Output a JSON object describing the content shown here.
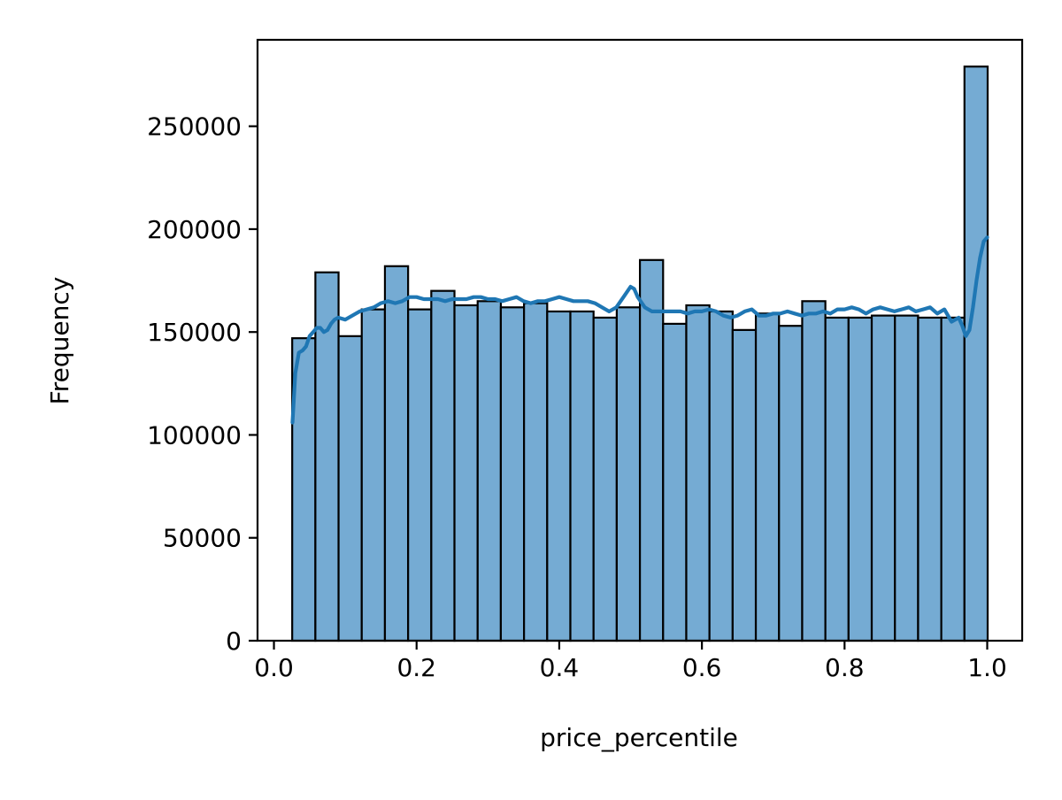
{
  "chart_data": {
    "type": "bar",
    "title": "",
    "xlabel": "price_percentile",
    "ylabel": "Frequency",
    "xlim": [
      -0.023,
      1.049
    ],
    "ylim": [
      0,
      292000
    ],
    "grid": false,
    "x_ticks": [
      0.0,
      0.2,
      0.4,
      0.6,
      0.8,
      1.0
    ],
    "x_tick_labels": [
      "0.0",
      "0.2",
      "0.4",
      "0.6",
      "0.8",
      "1.0"
    ],
    "y_ticks": [
      0,
      50000,
      100000,
      150000,
      200000,
      250000
    ],
    "y_tick_labels": [
      "0",
      "50000",
      "100000",
      "150000",
      "200000",
      "250000"
    ],
    "bin_edges": [
      0.0256,
      0.0581,
      0.0906,
      0.1231,
      0.1556,
      0.1881,
      0.2206,
      0.2531,
      0.2856,
      0.3181,
      0.3506,
      0.3831,
      0.4156,
      0.4481,
      0.4806,
      0.5131,
      0.5456,
      0.5781,
      0.6106,
      0.6431,
      0.6756,
      0.7081,
      0.7406,
      0.7731,
      0.8056,
      0.8381,
      0.8706,
      0.9031,
      0.9356,
      0.9681,
      1.0006
    ],
    "values": [
      147000,
      179000,
      148000,
      161000,
      182000,
      161000,
      170000,
      163000,
      165000,
      162000,
      164000,
      160000,
      160000,
      157000,
      162000,
      185000,
      154000,
      163000,
      160000,
      151000,
      159000,
      153000,
      165000,
      157000,
      157000,
      158000,
      158000,
      157000,
      157000,
      279000
    ],
    "bar_color": "#75abd3",
    "edge_color": "#000000",
    "kde": {
      "color": "#1f77b4",
      "x": [
        0.026,
        0.03,
        0.035,
        0.04,
        0.045,
        0.05,
        0.055,
        0.06,
        0.065,
        0.07,
        0.075,
        0.08,
        0.085,
        0.09,
        0.1,
        0.11,
        0.12,
        0.13,
        0.14,
        0.15,
        0.16,
        0.17,
        0.18,
        0.19,
        0.2,
        0.21,
        0.22,
        0.23,
        0.24,
        0.25,
        0.26,
        0.27,
        0.28,
        0.29,
        0.3,
        0.31,
        0.32,
        0.33,
        0.34,
        0.35,
        0.36,
        0.37,
        0.38,
        0.39,
        0.4,
        0.41,
        0.42,
        0.43,
        0.44,
        0.45,
        0.46,
        0.47,
        0.48,
        0.49,
        0.5,
        0.505,
        0.51,
        0.52,
        0.53,
        0.54,
        0.55,
        0.56,
        0.57,
        0.58,
        0.59,
        0.6,
        0.61,
        0.62,
        0.63,
        0.64,
        0.65,
        0.66,
        0.67,
        0.68,
        0.69,
        0.7,
        0.71,
        0.72,
        0.73,
        0.74,
        0.75,
        0.76,
        0.77,
        0.78,
        0.79,
        0.8,
        0.81,
        0.82,
        0.83,
        0.84,
        0.85,
        0.86,
        0.87,
        0.88,
        0.89,
        0.9,
        0.91,
        0.92,
        0.93,
        0.94,
        0.95,
        0.96,
        0.965,
        0.97,
        0.975,
        0.98,
        0.985,
        0.99,
        0.995,
        1.0
      ],
      "y": [
        106000,
        130000,
        140000,
        141000,
        143000,
        148000,
        150000,
        152000,
        152000,
        150000,
        151000,
        154000,
        156000,
        157000,
        156000,
        158000,
        160000,
        161000,
        162000,
        164000,
        165000,
        164000,
        165000,
        167000,
        167000,
        166000,
        166000,
        166000,
        165000,
        166000,
        166000,
        166000,
        167000,
        167000,
        166000,
        166000,
        165000,
        166000,
        167000,
        165000,
        164000,
        165000,
        165000,
        166000,
        167000,
        166000,
        165000,
        165000,
        165000,
        164000,
        162000,
        160000,
        162000,
        167000,
        172000,
        171000,
        167000,
        162000,
        160000,
        160000,
        160000,
        160000,
        160000,
        159000,
        160000,
        160000,
        161000,
        160000,
        158000,
        157000,
        158000,
        160000,
        161000,
        158000,
        158000,
        159000,
        159000,
        160000,
        159000,
        158000,
        159000,
        159000,
        160000,
        159000,
        161000,
        161000,
        162000,
        161000,
        159000,
        161000,
        162000,
        161000,
        160000,
        161000,
        162000,
        160000,
        161000,
        162000,
        159000,
        161000,
        155000,
        157000,
        153000,
        148000,
        151000,
        162000,
        175000,
        186000,
        194000,
        196000
      ]
    }
  }
}
